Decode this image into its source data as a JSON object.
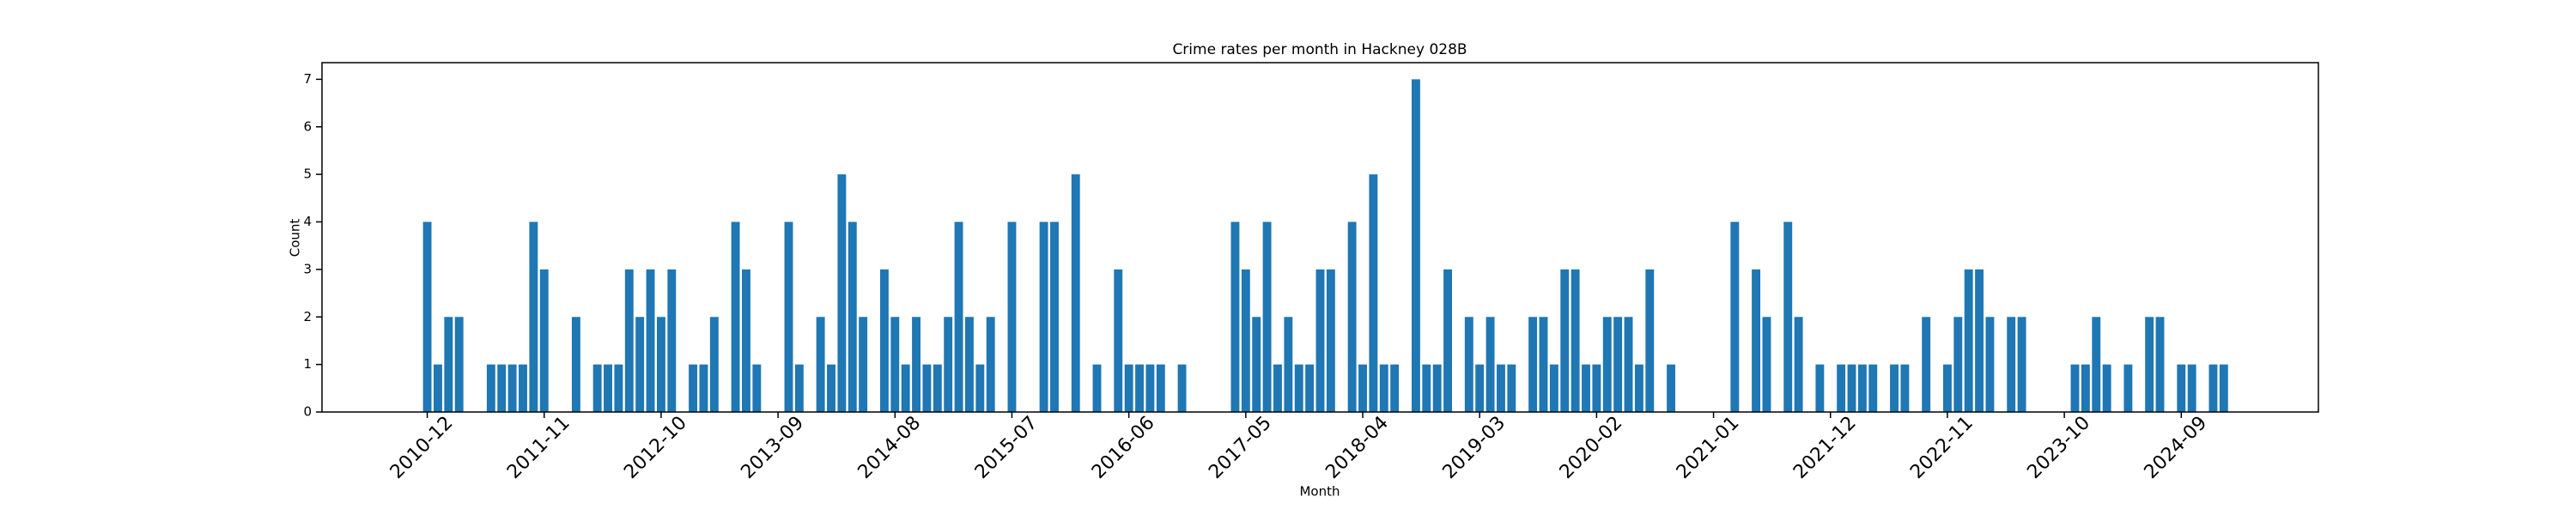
{
  "chart_data": {
    "type": "bar",
    "title": "Crime rates per month in Hackney 028B",
    "x_label": "Month",
    "y_label": "Count",
    "categories": [
      "2010-12",
      null,
      null,
      null,
      null,
      null,
      null,
      null,
      null,
      null,
      null,
      "2011-11",
      null,
      null,
      null,
      null,
      null,
      null,
      null,
      null,
      null,
      null,
      "2012-10",
      null,
      null,
      null,
      null,
      null,
      null,
      null,
      null,
      null,
      null,
      "2013-09",
      null,
      null,
      null,
      null,
      null,
      null,
      null,
      null,
      null,
      null,
      "2014-08",
      null,
      null,
      null,
      null,
      null,
      null,
      null,
      null,
      null,
      null,
      "2015-07",
      null,
      null,
      null,
      null,
      null,
      null,
      null,
      null,
      null,
      null,
      "2016-06",
      null,
      null,
      null,
      null,
      null,
      null,
      null,
      null,
      null,
      null,
      "2017-05",
      null,
      null,
      null,
      null,
      null,
      null,
      null,
      null,
      null,
      null,
      "2018-04",
      null,
      null,
      null,
      null,
      null,
      null,
      null,
      null,
      null,
      null,
      "2019-03",
      null,
      null,
      null,
      null,
      null,
      null,
      null,
      null,
      null,
      null,
      "2020-02",
      null,
      null,
      null,
      null,
      null,
      null,
      null,
      null,
      null,
      null,
      "2021-01",
      null,
      null,
      null,
      null,
      null,
      null,
      null,
      null,
      null,
      null,
      "2021-12",
      null,
      null,
      null,
      null,
      null,
      null,
      null,
      null,
      null,
      null,
      "2022-11",
      null,
      null,
      null,
      null,
      null,
      null,
      null,
      null,
      null,
      null,
      "2023-10",
      null,
      null,
      null,
      null,
      null,
      null,
      null,
      null,
      null,
      null,
      "2024-09",
      null,
      null,
      null,
      null
    ],
    "values": [
      4,
      1,
      2,
      2,
      0,
      0,
      1,
      1,
      1,
      1,
      4,
      3,
      0,
      0,
      2,
      0,
      1,
      1,
      1,
      3,
      2,
      3,
      2,
      3,
      0,
      1,
      1,
      2,
      0,
      4,
      3,
      1,
      0,
      0,
      4,
      1,
      0,
      2,
      1,
      5,
      4,
      2,
      0,
      3,
      2,
      1,
      2,
      1,
      1,
      2,
      4,
      2,
      1,
      2,
      0,
      4,
      0,
      0,
      4,
      4,
      0,
      5,
      0,
      1,
      0,
      3,
      1,
      1,
      1,
      1,
      0,
      1,
      0,
      0,
      0,
      0,
      4,
      3,
      2,
      4,
      1,
      2,
      1,
      1,
      3,
      3,
      0,
      4,
      1,
      5,
      1,
      1,
      0,
      7,
      1,
      1,
      3,
      0,
      2,
      1,
      2,
      1,
      1,
      0,
      2,
      2,
      1,
      3,
      3,
      1,
      1,
      2,
      2,
      2,
      1,
      3,
      0,
      1,
      0,
      0,
      0,
      0,
      0,
      4,
      0,
      3,
      2,
      0,
      4,
      2,
      0,
      1,
      0,
      1,
      1,
      1,
      1,
      0,
      1,
      1,
      0,
      2,
      0,
      1,
      2,
      3,
      3,
      2,
      0,
      2,
      2,
      0,
      0,
      0,
      0,
      1,
      1,
      2,
      1,
      0,
      1,
      0,
      2,
      2,
      0,
      1,
      1,
      0,
      1,
      1
    ],
    "color": "#1f77b4",
    "ylim": [
      0,
      7.35
    ],
    "yticks": [
      0,
      1,
      2,
      3,
      4,
      5,
      6,
      7
    ],
    "grid": false
  }
}
